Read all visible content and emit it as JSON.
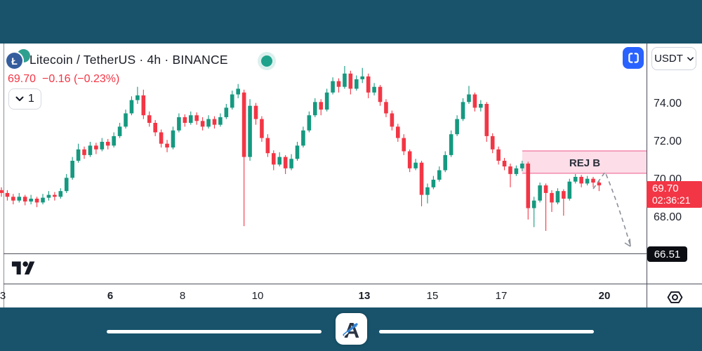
{
  "header": {
    "symbol_title": "Litecoin / TetherUS · 4h · BINANCE",
    "coin_symbol": "Ł",
    "last_price": "69.70",
    "change": "−0.16 (−0.23%)",
    "interval": "1",
    "status_dot_color": "#1fa28c"
  },
  "top_right": {
    "fullscreen_button_color": "#2962ff",
    "quote_currency": "USDT"
  },
  "colors": {
    "statusbar": "#18536b",
    "bottom_bar": "#18536b",
    "header_change_red": "#f23645"
  },
  "chart_data": {
    "type": "candlestick",
    "title": "Litecoin / TetherUS",
    "exchange": "BINANCE",
    "timeframe": "4h",
    "up_color": "#159980",
    "down_color": "#f23645",
    "price_axis_ticks": [
      "74.00",
      "72.00",
      "70.00",
      "68.00"
    ],
    "time_axis_ticks": [
      {
        "label": "3",
        "x": 4,
        "bold": false
      },
      {
        "label": "6",
        "x": 157,
        "bold": true
      },
      {
        "label": "8",
        "x": 260,
        "bold": false
      },
      {
        "label": "10",
        "x": 367,
        "bold": false
      },
      {
        "label": "13",
        "x": 519,
        "bold": true
      },
      {
        "label": "15",
        "x": 616,
        "bold": false
      },
      {
        "label": "17",
        "x": 714,
        "bold": false
      },
      {
        "label": "20",
        "x": 861,
        "bold": true
      }
    ],
    "current_price": "69.70",
    "countdown": "02:36:21",
    "target_price": "66.51",
    "zone": {
      "label": "REJ B",
      "top": 71.52,
      "bottom": 70.34,
      "fill": "rgba(233,30,99,0.15)",
      "border": "rgba(233,30,99,0.45)",
      "label_color": "#2a2e39"
    },
    "projection_color": "#8c9099",
    "ylim": [
      66.1,
      77.2
    ],
    "candles": [
      [
        69.45,
        69.6,
        69.1,
        69.3
      ],
      [
        69.3,
        69.45,
        68.9,
        69.1
      ],
      [
        69.1,
        69.25,
        68.7,
        68.9
      ],
      [
        68.9,
        69.3,
        68.8,
        69.1
      ],
      [
        69.1,
        69.2,
        68.65,
        68.85
      ],
      [
        68.85,
        69.2,
        68.7,
        69.0
      ],
      [
        69.0,
        69.1,
        68.55,
        68.8
      ],
      [
        68.8,
        69.25,
        68.7,
        69.05
      ],
      [
        69.05,
        69.4,
        68.9,
        69.2
      ],
      [
        69.2,
        69.35,
        68.9,
        69.1
      ],
      [
        69.1,
        69.55,
        69.0,
        69.4
      ],
      [
        69.4,
        70.3,
        69.3,
        70.1
      ],
      [
        70.1,
        71.2,
        70.0,
        71.0
      ],
      [
        71.0,
        71.9,
        70.9,
        71.6
      ],
      [
        71.6,
        71.75,
        71.1,
        71.3
      ],
      [
        71.3,
        72.0,
        71.2,
        71.8
      ],
      [
        71.8,
        71.95,
        71.35,
        71.6
      ],
      [
        71.6,
        72.2,
        71.5,
        72.0
      ],
      [
        72.0,
        72.15,
        71.6,
        71.8
      ],
      [
        71.8,
        72.5,
        71.7,
        72.3
      ],
      [
        72.3,
        73.0,
        72.2,
        72.8
      ],
      [
        72.8,
        73.7,
        72.7,
        73.5
      ],
      [
        73.5,
        74.4,
        73.4,
        74.2
      ],
      [
        74.2,
        74.9,
        74.0,
        74.45
      ],
      [
        74.45,
        74.75,
        73.2,
        73.4
      ],
      [
        73.4,
        73.6,
        72.8,
        73.0
      ],
      [
        73.0,
        73.15,
        72.3,
        72.5
      ],
      [
        72.5,
        72.65,
        71.7,
        71.9
      ],
      [
        71.9,
        72.1,
        71.45,
        71.7
      ],
      [
        71.7,
        72.8,
        71.6,
        72.6
      ],
      [
        72.6,
        73.5,
        72.5,
        73.3
      ],
      [
        73.3,
        73.45,
        72.8,
        73.0
      ],
      [
        73.0,
        73.6,
        72.9,
        73.4
      ],
      [
        73.4,
        73.55,
        72.9,
        73.1
      ],
      [
        73.1,
        73.3,
        72.6,
        72.8
      ],
      [
        72.8,
        73.4,
        72.7,
        73.2
      ],
      [
        73.2,
        73.35,
        72.7,
        72.9
      ],
      [
        72.9,
        73.5,
        72.8,
        73.3
      ],
      [
        73.3,
        74.0,
        73.2,
        73.8
      ],
      [
        73.8,
        74.7,
        73.7,
        74.5
      ],
      [
        74.5,
        75.05,
        74.3,
        74.8
      ],
      [
        74.6,
        74.75,
        67.55,
        71.2
      ],
      [
        71.2,
        74.25,
        71.0,
        73.9
      ],
      [
        73.9,
        74.05,
        72.9,
        73.2
      ],
      [
        73.2,
        73.35,
        72.0,
        72.2
      ],
      [
        72.2,
        72.4,
        71.2,
        71.4
      ],
      [
        71.4,
        71.55,
        70.5,
        70.8
      ],
      [
        70.8,
        71.45,
        70.7,
        71.2
      ],
      [
        71.2,
        71.3,
        70.3,
        70.6
      ],
      [
        70.6,
        71.35,
        70.5,
        71.1
      ],
      [
        71.1,
        72.0,
        71.0,
        71.8
      ],
      [
        71.8,
        72.8,
        71.7,
        72.6
      ],
      [
        72.6,
        73.6,
        72.5,
        73.4
      ],
      [
        73.4,
        74.3,
        73.3,
        74.1
      ],
      [
        74.1,
        74.25,
        73.4,
        73.7
      ],
      [
        73.7,
        74.8,
        73.6,
        74.6
      ],
      [
        74.6,
        75.4,
        74.5,
        75.2
      ],
      [
        75.2,
        75.35,
        74.6,
        74.9
      ],
      [
        74.9,
        76.0,
        74.8,
        75.6
      ],
      [
        75.6,
        75.75,
        74.5,
        74.8
      ],
      [
        74.8,
        75.5,
        74.7,
        75.3
      ],
      [
        75.3,
        75.9,
        75.1,
        75.45
      ],
      [
        75.45,
        75.6,
        74.3,
        74.6
      ],
      [
        74.6,
        75.1,
        74.45,
        74.9
      ],
      [
        74.9,
        75.0,
        73.9,
        74.1
      ],
      [
        74.1,
        74.25,
        73.3,
        73.5
      ],
      [
        73.5,
        73.65,
        72.6,
        72.8
      ],
      [
        72.8,
        72.95,
        72.0,
        72.2
      ],
      [
        72.2,
        72.4,
        71.3,
        71.5
      ],
      [
        71.5,
        71.6,
        70.4,
        70.6
      ],
      [
        70.6,
        71.1,
        70.5,
        70.9
      ],
      [
        70.9,
        71.0,
        68.6,
        69.2
      ],
      [
        69.2,
        69.8,
        68.75,
        69.6
      ],
      [
        69.6,
        70.2,
        69.5,
        70.0
      ],
      [
        70.0,
        70.7,
        69.9,
        70.5
      ],
      [
        70.5,
        71.5,
        70.4,
        71.3
      ],
      [
        71.3,
        72.6,
        71.2,
        72.4
      ],
      [
        72.4,
        73.4,
        72.3,
        73.2
      ],
      [
        73.2,
        74.3,
        73.1,
        74.1
      ],
      [
        74.1,
        74.95,
        74.0,
        74.5
      ],
      [
        74.5,
        74.6,
        73.6,
        73.8
      ],
      [
        73.8,
        74.2,
        73.6,
        74.0
      ],
      [
        74.0,
        74.1,
        72.0,
        72.3
      ],
      [
        72.3,
        72.45,
        71.4,
        71.6
      ],
      [
        71.6,
        71.75,
        70.8,
        71.0
      ],
      [
        71.0,
        71.15,
        70.5,
        70.7
      ],
      [
        70.7,
        70.85,
        69.6,
        70.3
      ],
      [
        70.3,
        70.75,
        70.2,
        70.6
      ],
      [
        70.6,
        71.0,
        70.45,
        70.85
      ],
      [
        70.85,
        70.95,
        67.9,
        68.5
      ],
      [
        68.5,
        69.1,
        67.5,
        68.9
      ],
      [
        68.9,
        69.85,
        68.8,
        69.7
      ],
      [
        69.7,
        69.8,
        67.3,
        69.3
      ],
      [
        69.3,
        69.45,
        68.3,
        68.8
      ],
      [
        68.8,
        69.55,
        68.7,
        69.4
      ],
      [
        69.4,
        69.5,
        68.1,
        69.0
      ],
      [
        69.0,
        70.05,
        68.9,
        69.9
      ],
      [
        69.9,
        70.3,
        69.8,
        70.15
      ],
      [
        70.15,
        70.25,
        69.6,
        69.8
      ],
      [
        69.8,
        70.2,
        69.7,
        70.05
      ],
      [
        70.05,
        70.15,
        69.6,
        69.85
      ],
      [
        69.85,
        69.95,
        69.4,
        69.7
      ]
    ]
  },
  "footer": {
    "app_logo_letter": "A"
  }
}
